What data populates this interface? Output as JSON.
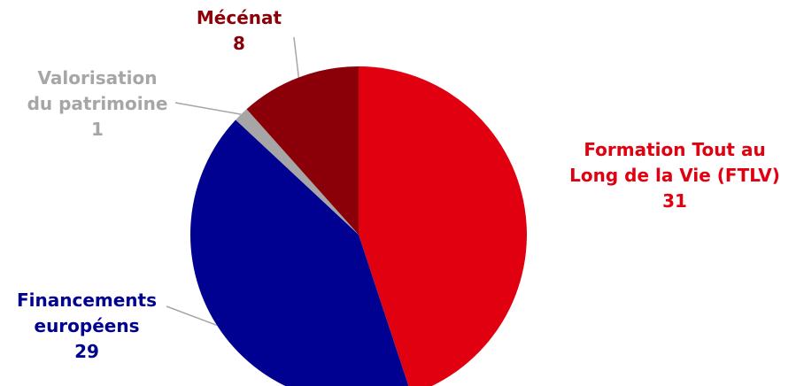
{
  "chart_data": {
    "type": "pie",
    "title": "",
    "slices": [
      {
        "name_lines": [
          "Formation Tout au",
          "Long de la Vie (FTLV)"
        ],
        "value": 31,
        "value_label": "31",
        "color": "#E1000F"
      },
      {
        "name_lines": [
          "Financements",
          "européens"
        ],
        "value": 29,
        "value_label": "29",
        "color": "#000091"
      },
      {
        "name_lines": [
          "Valorisation",
          "du patrimoine"
        ],
        "value": 1,
        "value_label": "1",
        "color": "#A6A6A6"
      },
      {
        "name_lines": [
          "Mécénat"
        ],
        "value": 8,
        "value_label": "8",
        "color": "#8B0008"
      }
    ],
    "start_angle": "12 o'clock",
    "direction": "clockwise",
    "legend": "none (data labels beside slices)"
  }
}
